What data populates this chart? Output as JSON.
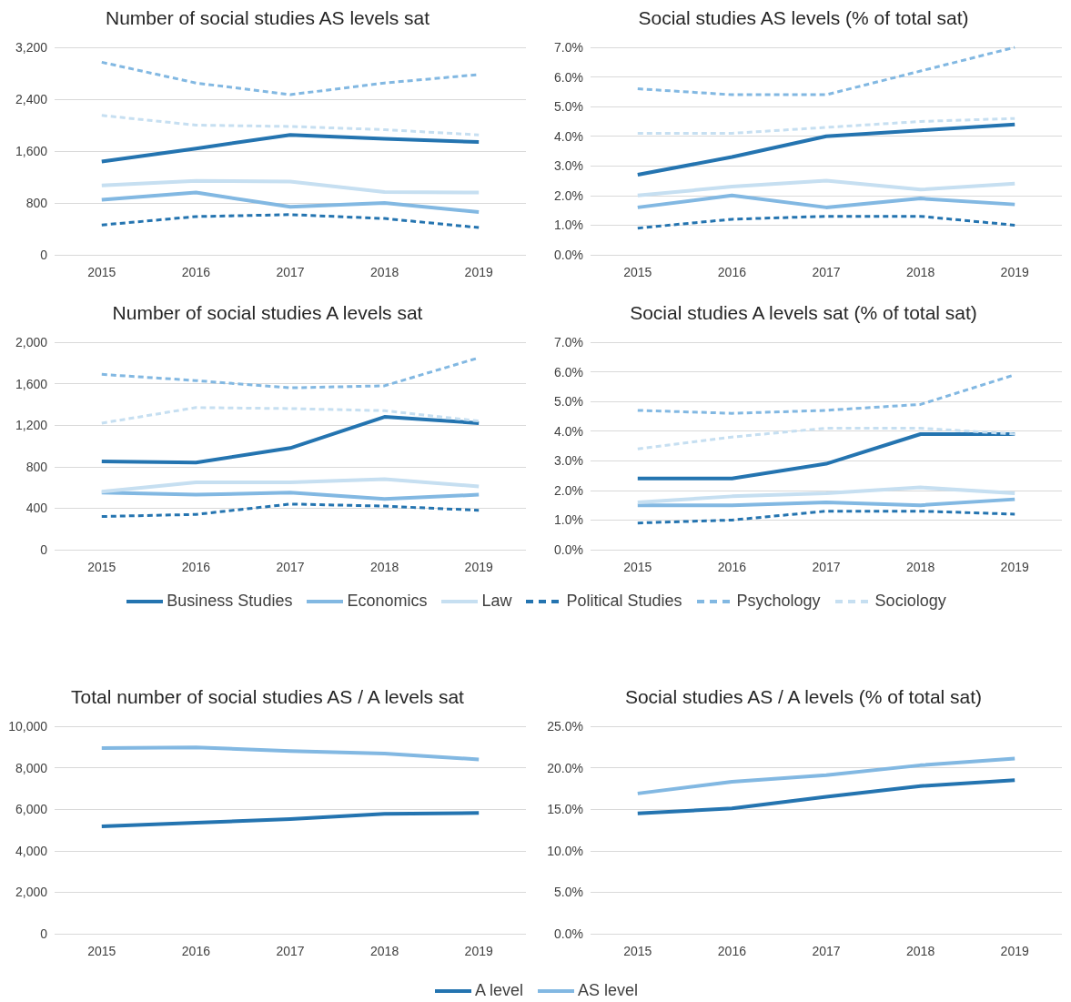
{
  "chart_data": [
    {
      "type": "line",
      "title": "Number of social studies AS levels sat",
      "categories": [
        "2015",
        "2016",
        "2017",
        "2018",
        "2019"
      ],
      "ylim": [
        0,
        3200
      ],
      "yticks": [
        {
          "value": 0,
          "label": "0"
        },
        {
          "value": 800,
          "label": "800"
        },
        {
          "value": 1600,
          "label": "1,600"
        },
        {
          "value": 2400,
          "label": "2,400"
        },
        {
          "value": 3200,
          "label": "3,200"
        }
      ],
      "grid": "y",
      "marker": "none",
      "legend": "bottom",
      "series": [
        {
          "name": "Business Studies",
          "color": "#2474b0",
          "values": [
            1440,
            1640,
            1850,
            1790,
            1740
          ]
        },
        {
          "name": "Economics",
          "color": "#82b8e2",
          "values": [
            850,
            960,
            740,
            800,
            660
          ]
        },
        {
          "name": "Law",
          "color": "#c6dff1",
          "values": [
            1070,
            1140,
            1130,
            970,
            960
          ]
        },
        {
          "name": "Political Studies",
          "color": "#2474b0",
          "line_style": "dashed",
          "values": [
            460,
            590,
            620,
            560,
            420
          ]
        },
        {
          "name": "Psychology",
          "color": "#82b8e2",
          "line_style": "dashed",
          "values": [
            2970,
            2650,
            2470,
            2650,
            2780
          ]
        },
        {
          "name": "Sociology",
          "color": "#c6dff1",
          "line_style": "dashed",
          "values": [
            2150,
            2000,
            1980,
            1930,
            1850
          ]
        }
      ]
    },
    {
      "type": "line",
      "title": "Social studies AS levels (% of total sat)",
      "categories": [
        "2015",
        "2016",
        "2017",
        "2018",
        "2019"
      ],
      "ylim": [
        0,
        7
      ],
      "yticks": [
        {
          "value": 0,
          "label": "0.0%"
        },
        {
          "value": 1,
          "label": "1.0%"
        },
        {
          "value": 2,
          "label": "2.0%"
        },
        {
          "value": 3,
          "label": "3.0%"
        },
        {
          "value": 4,
          "label": "4.0%"
        },
        {
          "value": 5,
          "label": "5.0%"
        },
        {
          "value": 6,
          "label": "6.0%"
        },
        {
          "value": 7,
          "label": "7.0%"
        }
      ],
      "grid": "y",
      "marker": "none",
      "series": [
        {
          "color": "#2474b0",
          "values": [
            2.7,
            3.3,
            4.0,
            4.2,
            4.4
          ]
        },
        {
          "color": "#82b8e2",
          "values": [
            1.6,
            2.0,
            1.6,
            1.9,
            1.7
          ]
        },
        {
          "color": "#c6dff1",
          "values": [
            2.0,
            2.3,
            2.5,
            2.2,
            2.4
          ]
        },
        {
          "color": "#2474b0",
          "line_style": "dashed",
          "values": [
            0.9,
            1.2,
            1.3,
            1.3,
            1.0
          ]
        },
        {
          "color": "#82b8e2",
          "line_style": "dashed",
          "values": [
            5.6,
            5.4,
            5.4,
            6.2,
            7.0
          ]
        },
        {
          "color": "#c6dff1",
          "line_style": "dashed",
          "values": [
            4.1,
            4.1,
            4.3,
            4.5,
            4.6
          ]
        }
      ]
    },
    {
      "type": "line",
      "title": "Number of social studies A levels sat",
      "categories": [
        "2015",
        "2016",
        "2017",
        "2018",
        "2019"
      ],
      "ylim": [
        0,
        2000
      ],
      "yticks": [
        {
          "value": 0,
          "label": "0"
        },
        {
          "value": 400,
          "label": "400"
        },
        {
          "value": 800,
          "label": "800"
        },
        {
          "value": 1200,
          "label": "1,200"
        },
        {
          "value": 1600,
          "label": "1,600"
        },
        {
          "value": 2000,
          "label": "2,000"
        }
      ],
      "grid": "y",
      "marker": "none",
      "series": [
        {
          "color": "#2474b0",
          "values": [
            850,
            840,
            980,
            1280,
            1220
          ]
        },
        {
          "color": "#82b8e2",
          "values": [
            550,
            530,
            550,
            490,
            530
          ]
        },
        {
          "color": "#c6dff1",
          "values": [
            560,
            650,
            650,
            680,
            610
          ]
        },
        {
          "color": "#2474b0",
          "line_style": "dashed",
          "values": [
            320,
            340,
            440,
            420,
            380
          ]
        },
        {
          "color": "#82b8e2",
          "line_style": "dashed",
          "values": [
            1690,
            1630,
            1560,
            1580,
            1850
          ]
        },
        {
          "color": "#c6dff1",
          "line_style": "dashed",
          "values": [
            1220,
            1370,
            1360,
            1340,
            1240
          ]
        }
      ]
    },
    {
      "type": "line",
      "title": "Social studies A levels sat (% of total sat)",
      "categories": [
        "2015",
        "2016",
        "2017",
        "2018",
        "2019"
      ],
      "ylim": [
        0,
        7
      ],
      "yticks": [
        {
          "value": 0,
          "label": "0.0%"
        },
        {
          "value": 1,
          "label": "1.0%"
        },
        {
          "value": 2,
          "label": "2.0%"
        },
        {
          "value": 3,
          "label": "3.0%"
        },
        {
          "value": 4,
          "label": "4.0%"
        },
        {
          "value": 5,
          "label": "5.0%"
        },
        {
          "value": 6,
          "label": "6.0%"
        },
        {
          "value": 7,
          "label": "7.0%"
        }
      ],
      "grid": "y",
      "marker": "none",
      "series": [
        {
          "color": "#2474b0",
          "values": [
            2.4,
            2.4,
            2.9,
            3.9,
            3.9
          ]
        },
        {
          "color": "#82b8e2",
          "values": [
            1.5,
            1.5,
            1.6,
            1.5,
            1.7
          ]
        },
        {
          "color": "#c6dff1",
          "values": [
            1.6,
            1.8,
            1.9,
            2.1,
            1.9
          ]
        },
        {
          "color": "#2474b0",
          "line_style": "dashed",
          "values": [
            0.9,
            1.0,
            1.3,
            1.3,
            1.2
          ]
        },
        {
          "color": "#82b8e2",
          "line_style": "dashed",
          "values": [
            4.7,
            4.6,
            4.7,
            4.9,
            5.9
          ]
        },
        {
          "color": "#c6dff1",
          "line_style": "dashed",
          "values": [
            3.4,
            3.8,
            4.1,
            4.1,
            3.9
          ]
        }
      ]
    },
    {
      "type": "line",
      "title": "Total number of social studies AS / A levels sat",
      "categories": [
        "2015",
        "2016",
        "2017",
        "2018",
        "2019"
      ],
      "ylim": [
        0,
        10000
      ],
      "yticks": [
        {
          "value": 0,
          "label": "0"
        },
        {
          "value": 2000,
          "label": "2,000"
        },
        {
          "value": 4000,
          "label": "4,000"
        },
        {
          "value": 6000,
          "label": "6,000"
        },
        {
          "value": 8000,
          "label": "8,000"
        },
        {
          "value": 10000,
          "label": "10,000"
        }
      ],
      "grid": "y",
      "marker": "none",
      "legend": "bottom",
      "series": [
        {
          "name": "A level",
          "color": "#2474b0",
          "values": [
            5180,
            5350,
            5530,
            5780,
            5820
          ]
        },
        {
          "name": "AS level",
          "color": "#82b8e2",
          "values": [
            8950,
            8980,
            8800,
            8680,
            8400
          ]
        }
      ]
    },
    {
      "type": "line",
      "title": "Social studies AS / A levels (% of total sat)",
      "categories": [
        "2015",
        "2016",
        "2017",
        "2018",
        "2019"
      ],
      "ylim": [
        0,
        25
      ],
      "yticks": [
        {
          "value": 0,
          "label": "0.0%"
        },
        {
          "value": 5,
          "label": "5.0%"
        },
        {
          "value": 10,
          "label": "10.0%"
        },
        {
          "value": 15,
          "label": "15.0%"
        },
        {
          "value": 20,
          "label": "20.0%"
        },
        {
          "value": 25,
          "label": "25.0%"
        }
      ],
      "grid": "y",
      "marker": "none",
      "series": [
        {
          "color": "#2474b0",
          "values": [
            14.5,
            15.1,
            16.5,
            17.8,
            18.5
          ]
        },
        {
          "color": "#82b8e2",
          "values": [
            16.9,
            18.3,
            19.1,
            20.3,
            21.1
          ]
        }
      ]
    }
  ]
}
